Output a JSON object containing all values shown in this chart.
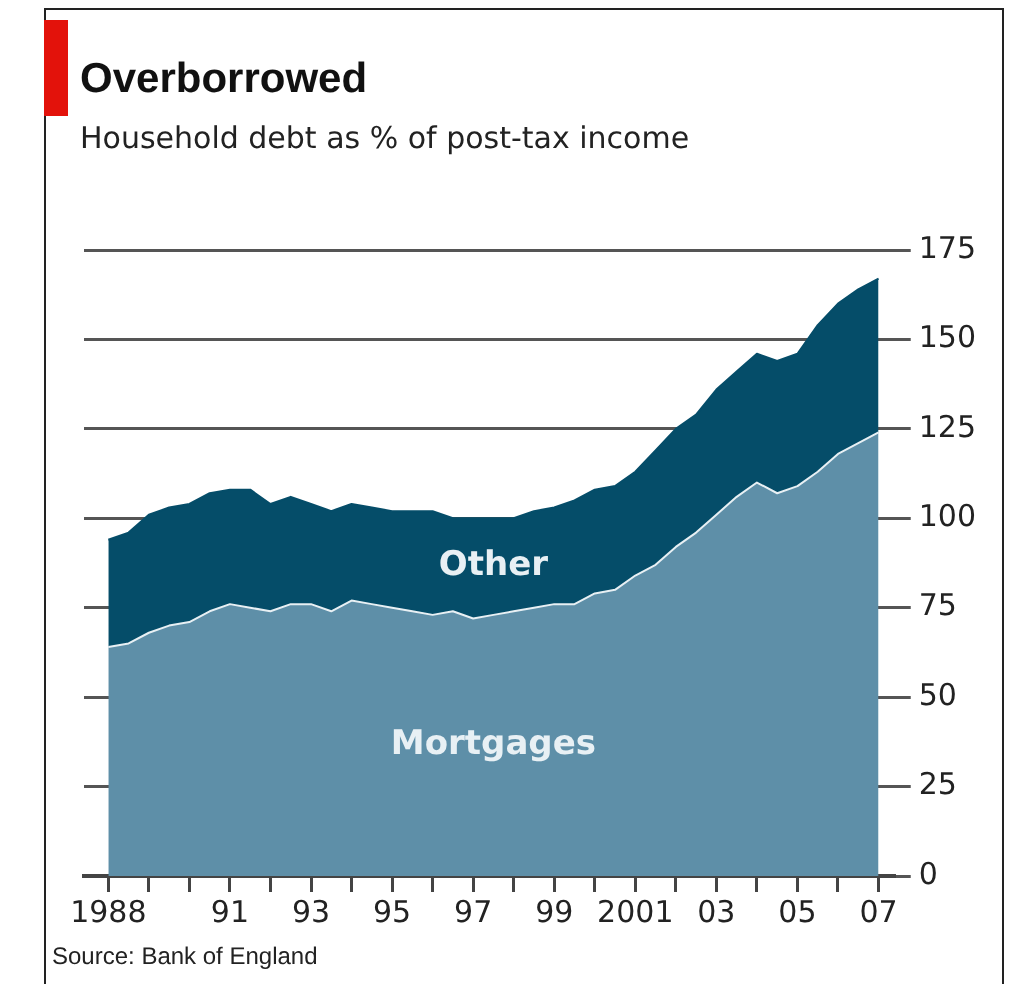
{
  "chart_data": {
    "type": "area",
    "title": "Overborrowed",
    "subtitle": "Household debt as % of post-tax income",
    "annotations": [
      "Source: Bank of England"
    ],
    "stacked": true,
    "grid": "y",
    "x": [
      1988,
      1988.5,
      1989,
      1989.5,
      1990,
      1990.5,
      1991,
      1991.5,
      1992,
      1992.5,
      1993,
      1993.5,
      1994,
      1994.5,
      1995,
      1995.5,
      1996,
      1996.5,
      1997,
      1997.5,
      1998,
      1998.5,
      1999,
      1999.5,
      2000,
      2000.5,
      2001,
      2001.5,
      2002,
      2002.5,
      2003,
      2003.5,
      2004,
      2004.5,
      2005,
      2005.5,
      2006,
      2006.5,
      2007
    ],
    "series": [
      {
        "name": "Mortgages",
        "color": "#5e8fa8",
        "values": [
          64,
          65,
          68,
          70,
          71,
          74,
          76,
          75,
          74,
          76,
          76,
          74,
          77,
          76,
          75,
          74,
          73,
          74,
          72,
          73,
          74,
          75,
          76,
          76,
          79,
          80,
          84,
          87,
          92,
          96,
          101,
          106,
          110,
          107,
          109,
          113,
          118,
          121,
          124
        ]
      },
      {
        "name": "Other",
        "color": "#054d69",
        "values": [
          30,
          31,
          33,
          33,
          33,
          33,
          32,
          33,
          30,
          30,
          28,
          28,
          27,
          27,
          27,
          28,
          29,
          26,
          28,
          27,
          26,
          27,
          27,
          29,
          29,
          29,
          29,
          32,
          33,
          33,
          35,
          35,
          36,
          37,
          37,
          41,
          42,
          43,
          43
        ]
      }
    ],
    "xlim": [
      1987.4,
      2007.4
    ],
    "xticks": [
      {
        "value": 1988,
        "label": "1988"
      },
      {
        "value": 1989,
        "label": null
      },
      {
        "value": 1990,
        "label": null
      },
      {
        "value": 1991,
        "label": "91"
      },
      {
        "value": 1992,
        "label": null
      },
      {
        "value": 1993,
        "label": "93"
      },
      {
        "value": 1994,
        "label": null
      },
      {
        "value": 1995,
        "label": "95"
      },
      {
        "value": 1996,
        "label": null
      },
      {
        "value": 1997,
        "label": "97"
      },
      {
        "value": 1998,
        "label": null
      },
      {
        "value": 1999,
        "label": "99"
      },
      {
        "value": 2000,
        "label": null
      },
      {
        "value": 2001,
        "label": "2001"
      },
      {
        "value": 2002,
        "label": null
      },
      {
        "value": 2003,
        "label": "03"
      },
      {
        "value": 2004,
        "label": null
      },
      {
        "value": 2005,
        "label": "05"
      },
      {
        "value": 2006,
        "label": null
      },
      {
        "value": 2007,
        "label": "07"
      }
    ],
    "ylim": [
      0,
      175
    ],
    "yticks": [
      0,
      25,
      50,
      75,
      100,
      125,
      150,
      175
    ]
  }
}
